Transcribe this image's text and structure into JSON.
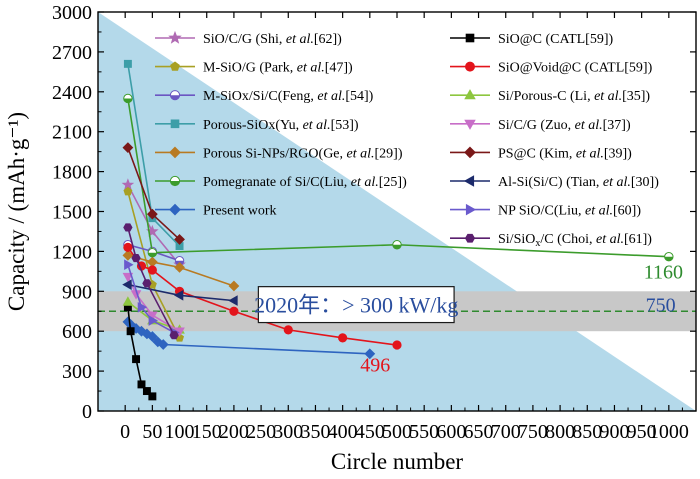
{
  "chart_data": {
    "type": "line",
    "xlabel": "Circle number",
    "ylabel": "Capacity / (mAh·g⁻¹)",
    "xlim": [
      -50,
      1050
    ],
    "ylim": [
      0,
      3000
    ],
    "xticks": [
      0,
      50,
      100,
      150,
      200,
      250,
      300,
      350,
      400,
      450,
      500,
      550,
      600,
      650,
      700,
      750,
      800,
      850,
      900,
      950,
      1000
    ],
    "xtick_labels": [
      "0",
      "50",
      "100",
      "150",
      "200",
      "250",
      "300",
      "350",
      "400",
      "450",
      "500",
      "550",
      "600",
      "650",
      "700",
      "750",
      "800",
      "850",
      "900",
      "950",
      "1000"
    ],
    "yticks": [
      0,
      300,
      600,
      900,
      1200,
      1500,
      1800,
      2100,
      2400,
      2700,
      3000
    ],
    "ytick_labels": [
      "0",
      "300",
      "600",
      "900",
      "1200",
      "1500",
      "1800",
      "2100",
      "2400",
      "2700",
      "3000"
    ],
    "background_triangle": {
      "points": [
        [
          -50,
          3000
        ],
        [
          1050,
          0
        ],
        [
          -50,
          0
        ]
      ],
      "color": "#b4d9ea"
    },
    "band": {
      "y_range": [
        600,
        900
      ],
      "color": "#c8c8c8"
    },
    "target_line": {
      "y": 750,
      "color": "#2f8a2f",
      "style": "dashed"
    },
    "banner_text": "2020年：> 300 kW/kg",
    "annotations": [
      {
        "text": "1160",
        "x": 990,
        "y": 1050,
        "color": "#2e8b2e"
      },
      {
        "text": "750",
        "x": 985,
        "y": 800,
        "color": "#2a4e9e"
      },
      {
        "text": "496",
        "x": 460,
        "y": 350,
        "color": "#e3141b"
      }
    ],
    "legend_placement": "top (two columns)",
    "series": [
      {
        "name": "SiO/C/G (Shi, et al.[62])",
        "name_plain": "SiO/C/G (Shi, ",
        "name_italic": "et al.",
        "name_tail": "[62])",
        "color": "#b06ab3",
        "marker": "star",
        "x": [
          5,
          50,
          100
        ],
        "y": [
          1700,
          1350,
          1100
        ]
      },
      {
        "name": "M-SiO/G (Park, et al.[47])",
        "name_plain": "M-SiO/G (Park, ",
        "name_italic": "et al.",
        "name_tail": "[47])",
        "color": "#a8a024",
        "marker": "pentagon",
        "x": [
          5,
          50,
          100
        ],
        "y": [
          1650,
          950,
          550
        ]
      },
      {
        "name": "M-SiOx/Si/C(Feng, et al.[54])",
        "name_plain": "M-SiOx/Si/C(Feng, ",
        "name_italic": "et al.",
        "name_tail": "[54])",
        "color": "#6b56c2",
        "marker": "circle-half",
        "x": [
          5,
          50,
          100
        ],
        "y": [
          1250,
          1200,
          1130
        ]
      },
      {
        "name": "Porous-SiOx(Yu, et al.[53])",
        "name_plain": "Porous-SiOx(Yu, ",
        "name_italic": "et al.",
        "name_tail": "[53])",
        "color": "#3d9ea8",
        "marker": "square",
        "x": [
          5,
          50,
          100
        ],
        "y": [
          2610,
          1450,
          1240
        ]
      },
      {
        "name": "Porous Si-NPs/RGO(Ge, et al.[29])",
        "name_plain": "Porous Si-NPs/RGO(Ge, ",
        "name_italic": "et al.",
        "name_tail": "[29])",
        "color": "#b87a22",
        "marker": "diamond",
        "x": [
          5,
          50,
          100,
          200
        ],
        "y": [
          1170,
          1120,
          1080,
          940
        ]
      },
      {
        "name": "Pomegranate of Si/C(Liu, et al.[25])",
        "name_plain": "Pomegranate of Si/C(Liu, ",
        "name_italic": "et al.",
        "name_tail": "[25])",
        "color": "#3c9c2c",
        "marker": "circle-half",
        "x": [
          5,
          50,
          500,
          1000
        ],
        "y": [
          2350,
          1190,
          1250,
          1160
        ]
      },
      {
        "name": "Present work",
        "name_plain": "Present work",
        "name_italic": "",
        "name_tail": "",
        "color": "#2e64c0",
        "marker": "diamond",
        "x": [
          5,
          10,
          20,
          30,
          40,
          50,
          60,
          70,
          450
        ],
        "y": [
          670,
          650,
          620,
          600,
          580,
          560,
          520,
          500,
          430
        ]
      },
      {
        "name": "SiO@C (CATL[59])",
        "name_plain": "SiO@C (CATL[59])",
        "name_italic": "",
        "name_tail": "",
        "color": "#000000",
        "marker": "square",
        "x": [
          5,
          10,
          20,
          30,
          40,
          50
        ],
        "y": [
          780,
          600,
          390,
          200,
          150,
          110
        ]
      },
      {
        "name": "SiO@Void@C (CATL[59])",
        "name_plain": "SiO@Void@C (CATL[59])",
        "name_italic": "",
        "name_tail": "",
        "color": "#e3141b",
        "marker": "circle",
        "x": [
          5,
          30,
          50,
          100,
          200,
          300,
          400,
          500
        ],
        "y": [
          1230,
          1090,
          1060,
          900,
          750,
          610,
          550,
          496
        ]
      },
      {
        "name": "Si/Porous-C (Li, et al.[35])",
        "name_plain": "Si/Porous-C (Li, ",
        "name_italic": "et al.",
        "name_tail": "[35])",
        "color": "#8dc63f",
        "marker": "triangle-up",
        "x": [
          5,
          50,
          100
        ],
        "y": [
          820,
          680,
          610
        ]
      },
      {
        "name": "Si/C/G (Zuo, et al.[37])",
        "name_plain": "Si/C/G (Zuo, ",
        "name_italic": "et al.",
        "name_tail": "[37])",
        "color": "#c86ec8",
        "marker": "triangle-down",
        "x": [
          5,
          20,
          50,
          100
        ],
        "y": [
          1010,
          880,
          720,
          600
        ]
      },
      {
        "name": "PS@C (Kim, et al.[39])",
        "name_plain": "PS@C (Kim, ",
        "name_italic": "et al.",
        "name_tail": "[39])",
        "color": "#7a1818",
        "marker": "diamond",
        "x": [
          5,
          50,
          100
        ],
        "y": [
          1980,
          1480,
          1290
        ]
      },
      {
        "name": "Al-Si(Si/C) (Tian, et al.[30])",
        "name_plain": "Al-Si(Si/C) (Tian, ",
        "name_italic": "et al.",
        "name_tail": "[30])",
        "color": "#1c2a6b",
        "marker": "triangle-left",
        "x": [
          5,
          100,
          200
        ],
        "y": [
          950,
          870,
          830
        ]
      },
      {
        "name": "NP SiO/C(Liu, et al.[60])",
        "name_plain": "NP SiO/C(Liu, ",
        "name_italic": "et al.",
        "name_tail": "[60])",
        "color": "#6a5acd",
        "marker": "triangle-right",
        "x": [
          5,
          30,
          50,
          90
        ],
        "y": [
          1100,
          780,
          680,
          590
        ]
      },
      {
        "name": "Si/SiOx/C (Choi, et al.[61])",
        "name_plain": "Si/SiO",
        "name_sub": "x",
        "name_plain2": "/C (Choi, ",
        "name_italic": "et al.",
        "name_tail": "[61])",
        "color": "#5a1f6e",
        "marker": "hexagon",
        "x": [
          5,
          20,
          40,
          90
        ],
        "y": [
          1380,
          1150,
          960,
          570
        ]
      }
    ]
  }
}
